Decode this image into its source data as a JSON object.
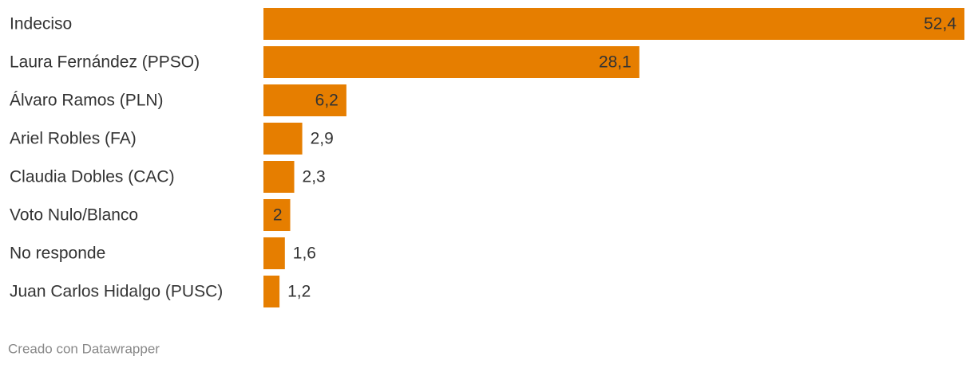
{
  "chart_data": {
    "type": "bar",
    "orientation": "horizontal",
    "categories": [
      "Indeciso",
      "Laura Fernández (PPSO)",
      "Álvaro Ramos (PLN)",
      "Ariel Robles (FA)",
      "Claudia Dobles (CAC)",
      "Voto Nulo/Blanco",
      "No responde",
      "Juan Carlos Hidalgo (PUSC)"
    ],
    "values": [
      52.4,
      28.1,
      6.2,
      2.9,
      2.3,
      2,
      1.6,
      1.2
    ],
    "value_labels": [
      "52,4",
      "28,1",
      "6,2",
      "2,9",
      "2,3",
      "2",
      "1,6",
      "1,2"
    ],
    "color": "#e67e00",
    "footer": "Creado con Datawrapper"
  }
}
